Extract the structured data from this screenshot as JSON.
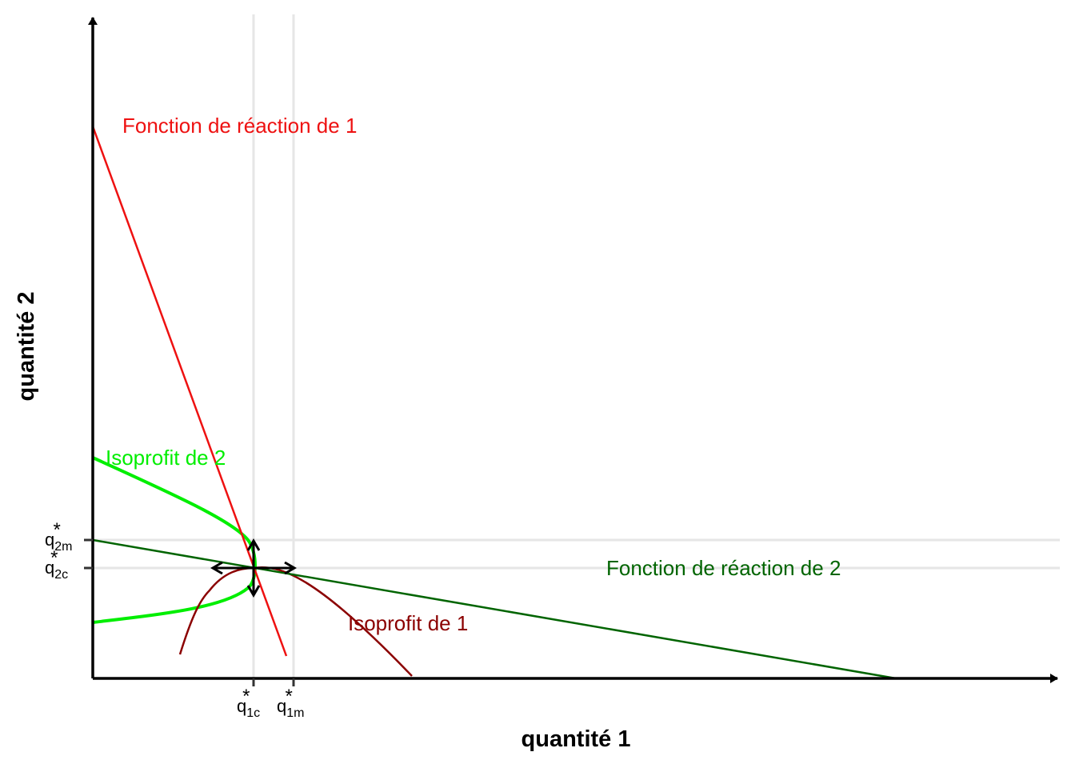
{
  "axes": {
    "x_title": "quantité 1",
    "y_title": "quantité 2"
  },
  "x_ticks": [
    {
      "base": "q",
      "sub": "1c",
      "sup": "*"
    },
    {
      "base": "q",
      "sub": "1m",
      "sup": "*"
    }
  ],
  "y_ticks": [
    {
      "base": "q",
      "sub": "2m",
      "sup": "*"
    },
    {
      "base": "q",
      "sub": "2c",
      "sup": "*"
    }
  ],
  "labels": {
    "reaction_1": "Fonction de réaction de 1",
    "reaction_2": "Fonction de réaction de 2",
    "isoprofit_1": "Isoprofit de 1",
    "isoprofit_2": "Isoprofit de 2"
  },
  "colors": {
    "reaction_1": "#ee1111",
    "reaction_2": "#006400",
    "isoprofit_1": "#8b0000",
    "isoprofit_2": "#00ee00",
    "gridline": "#e6e6e6",
    "axis": "#000000"
  }
}
